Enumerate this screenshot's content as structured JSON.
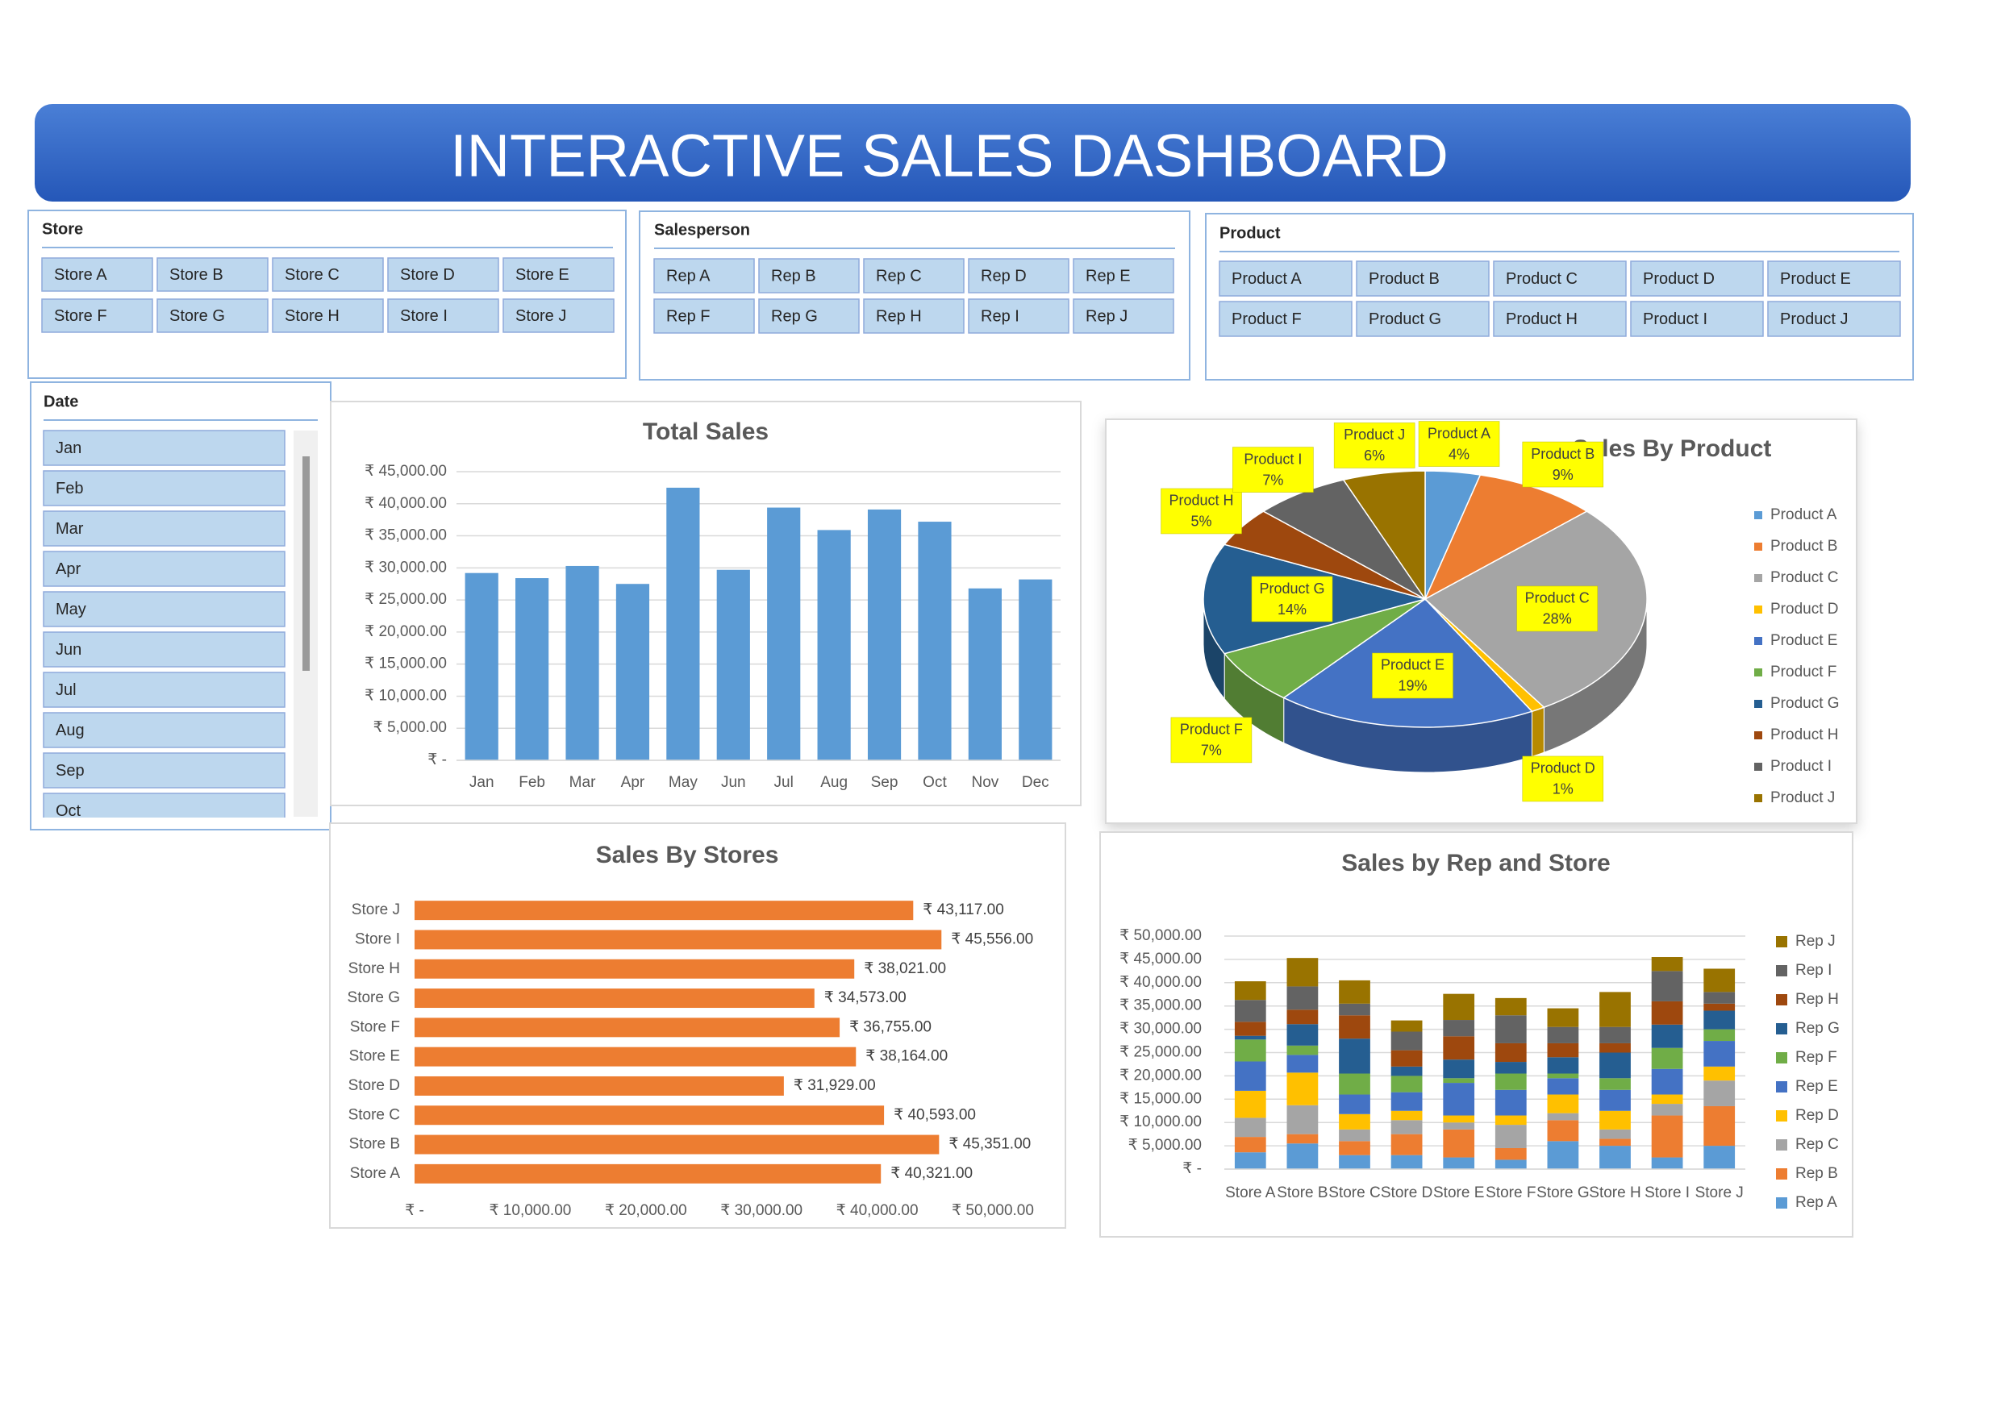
{
  "title": "INTERACTIVE SALES DASHBOARD",
  "slicers": {
    "store": {
      "title": "Store",
      "items": [
        "Store A",
        "Store B",
        "Store C",
        "Store D",
        "Store E",
        "Store F",
        "Store G",
        "Store H",
        "Store I",
        "Store J"
      ]
    },
    "salesperson": {
      "title": "Salesperson",
      "items": [
        "Rep A",
        "Rep B",
        "Rep C",
        "Rep D",
        "Rep E",
        "Rep F",
        "Rep G",
        "Rep H",
        "Rep I",
        "Rep J"
      ]
    },
    "product": {
      "title": "Product",
      "items": [
        "Product A",
        "Product B",
        "Product C",
        "Product D",
        "Product E",
        "Product F",
        "Product G",
        "Product H",
        "Product I",
        "Product J"
      ]
    },
    "date": {
      "title": "Date",
      "items": [
        "Jan",
        "Feb",
        "Mar",
        "Apr",
        "May",
        "Jun",
        "Jul",
        "Aug",
        "Sep",
        "Oct"
      ]
    }
  },
  "chart_data": [
    {
      "type": "bar",
      "title": "Total Sales",
      "categories": [
        "Jan",
        "Feb",
        "Mar",
        "Apr",
        "May",
        "Jun",
        "Jul",
        "Aug",
        "Sep",
        "Oct",
        "Nov",
        "Dec"
      ],
      "values": [
        29200,
        28400,
        30300,
        27500,
        42500,
        29700,
        39400,
        35900,
        39100,
        37200,
        26800,
        28200
      ],
      "color": "#5b9bd5",
      "ylim": [
        0,
        45000
      ],
      "yticks": [
        {
          "value": 0,
          "label": "₹ -"
        },
        {
          "value": 5000,
          "label": "₹ 5,000.00"
        },
        {
          "value": 10000,
          "label": "₹ 10,000.00"
        },
        {
          "value": 15000,
          "label": "₹ 15,000.00"
        },
        {
          "value": 20000,
          "label": "₹ 20,000.00"
        },
        {
          "value": 25000,
          "label": "₹ 25,000.00"
        },
        {
          "value": 30000,
          "label": "₹ 30,000.00"
        },
        {
          "value": 35000,
          "label": "₹ 35,000.00"
        },
        {
          "value": 40000,
          "label": "₹ 40,000.00"
        },
        {
          "value": 45000,
          "label": "₹ 45,000.00"
        }
      ],
      "grid": true
    },
    {
      "type": "pie",
      "title": "Sales By Product",
      "categories": [
        "Product A",
        "Product B",
        "Product C",
        "Product D",
        "Product E",
        "Product F",
        "Product G",
        "Product H",
        "Product I",
        "Product J"
      ],
      "values": [
        4,
        9,
        28,
        1,
        19,
        7,
        14,
        5,
        7,
        6
      ],
      "value_labels": [
        "4%",
        "9%",
        "28%",
        "1%",
        "19%",
        "7%",
        "14%",
        "5%",
        "7%",
        "6%"
      ],
      "colors": [
        "#5b9bd5",
        "#ed7d31",
        "#a5a5a5",
        "#ffc000",
        "#4472c4",
        "#70ad47",
        "#255e91",
        "#9e480e",
        "#636363",
        "#997300"
      ],
      "legend": "right"
    },
    {
      "type": "barh",
      "title": "Sales By Stores",
      "categories": [
        "Store A",
        "Store B",
        "Store C",
        "Store D",
        "Store E",
        "Store F",
        "Store G",
        "Store H",
        "Store I",
        "Store J"
      ],
      "values": [
        40321,
        45351,
        40593,
        31929,
        38164,
        36755,
        34573,
        38021,
        45556,
        43117
      ],
      "value_labels": [
        "₹ 40,321.00",
        "₹ 45,351.00",
        "₹ 40,593.00",
        "₹ 31,929.00",
        "₹ 38,164.00",
        "₹ 36,755.00",
        "₹ 34,573.00",
        "₹ 38,021.00",
        "₹ 45,556.00",
        "₹ 43,117.00"
      ],
      "color": "#ed7d31",
      "xlim": [
        0,
        50000
      ],
      "xticks": [
        {
          "value": 0,
          "label": "₹ -"
        },
        {
          "value": 10000,
          "label": "₹ 10,000.00"
        },
        {
          "value": 20000,
          "label": "₹ 20,000.00"
        },
        {
          "value": 30000,
          "label": "₹ 30,000.00"
        },
        {
          "value": 40000,
          "label": "₹ 40,000.00"
        },
        {
          "value": 50000,
          "label": "₹ 50,000.00"
        }
      ],
      "grid": false
    },
    {
      "type": "stacked_bar",
      "title": "Sales by Rep and Store",
      "categories": [
        "Store A",
        "Store B",
        "Store C",
        "Store D",
        "Store E",
        "Store F",
        "Store G",
        "Store H",
        "Store I",
        "Store J"
      ],
      "series": [
        {
          "name": "Rep A",
          "color": "#5b9bd5",
          "values": [
            3600,
            5500,
            3000,
            3000,
            2500,
            2000,
            6000,
            5000,
            2500,
            5000
          ]
        },
        {
          "name": "Rep B",
          "color": "#ed7d31",
          "values": [
            3300,
            2000,
            3000,
            4500,
            6000,
            2500,
            4500,
            1500,
            9000,
            8500
          ]
        },
        {
          "name": "Rep C",
          "color": "#a5a5a5",
          "values": [
            4100,
            6200,
            2500,
            3000,
            1500,
            5000,
            1500,
            2000,
            2500,
            5500
          ]
        },
        {
          "name": "Rep D",
          "color": "#ffc000",
          "values": [
            5800,
            7000,
            3300,
            2000,
            1500,
            2000,
            4000,
            4000,
            2000,
            3000
          ]
        },
        {
          "name": "Rep E",
          "color": "#4472c4",
          "values": [
            6300,
            3800,
            4200,
            4000,
            7000,
            5500,
            3500,
            4500,
            5500,
            5500
          ]
        },
        {
          "name": "Rep F",
          "color": "#70ad47",
          "values": [
            4700,
            2000,
            4500,
            3500,
            1000,
            3500,
            1000,
            2500,
            4500,
            2500
          ]
        },
        {
          "name": "Rep G",
          "color": "#255e91",
          "values": [
            800,
            4600,
            7500,
            2000,
            4000,
            2500,
            3500,
            5500,
            5000,
            4000
          ]
        },
        {
          "name": "Rep H",
          "color": "#9e480e",
          "values": [
            3000,
            3100,
            5000,
            3500,
            5000,
            4000,
            3000,
            2000,
            5000,
            1500
          ]
        },
        {
          "name": "Rep I",
          "color": "#636363",
          "values": [
            4700,
            5000,
            2500,
            4000,
            3500,
            6000,
            3500,
            3500,
            6500,
            2500
          ]
        },
        {
          "name": "Rep J",
          "color": "#997300",
          "values": [
            4000,
            6100,
            5000,
            2400,
            5600,
            3700,
            4000,
            7500,
            3000,
            5000
          ]
        }
      ],
      "ylim": [
        0,
        50000
      ],
      "yticks": [
        {
          "value": 0,
          "label": "₹ -"
        },
        {
          "value": 5000,
          "label": "₹ 5,000.00"
        },
        {
          "value": 10000,
          "label": "₹ 10,000.00"
        },
        {
          "value": 15000,
          "label": "₹ 15,000.00"
        },
        {
          "value": 20000,
          "label": "₹ 20,000.00"
        },
        {
          "value": 25000,
          "label": "₹ 25,000.00"
        },
        {
          "value": 30000,
          "label": "₹ 30,000.00"
        },
        {
          "value": 35000,
          "label": "₹ 35,000.00"
        },
        {
          "value": 40000,
          "label": "₹ 40,000.00"
        },
        {
          "value": 45000,
          "label": "₹ 45,000.00"
        },
        {
          "value": 50000,
          "label": "₹ 50,000.00"
        }
      ],
      "grid": true,
      "legend": "right"
    }
  ]
}
